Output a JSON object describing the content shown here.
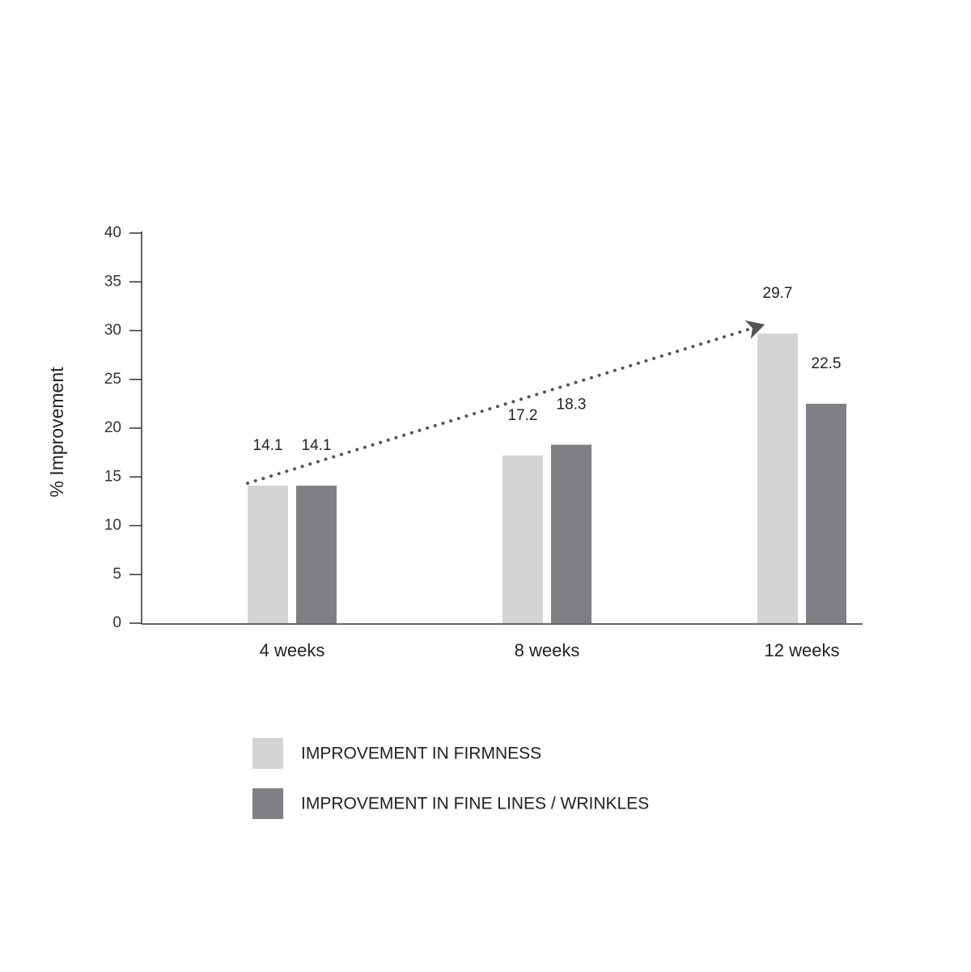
{
  "chart_data": {
    "type": "bar",
    "ylabel": "% Improvement",
    "categories": [
      "4 weeks",
      "8 weeks",
      "12 weeks"
    ],
    "series": [
      {
        "name": "IMPROVEMENT IN FIRMNESS",
        "color": "#d3d4d5",
        "values": [
          14.1,
          17.2,
          29.7
        ]
      },
      {
        "name": "IMPROVEMENT IN FINE LINES / WRINKLES",
        "color": "#7f8083",
        "values": [
          14.1,
          18.3,
          22.5
        ]
      }
    ],
    "ylim": [
      0,
      40
    ],
    "yticks": [
      0,
      5,
      10,
      15,
      20,
      25,
      30,
      35,
      40
    ],
    "grid": false
  }
}
